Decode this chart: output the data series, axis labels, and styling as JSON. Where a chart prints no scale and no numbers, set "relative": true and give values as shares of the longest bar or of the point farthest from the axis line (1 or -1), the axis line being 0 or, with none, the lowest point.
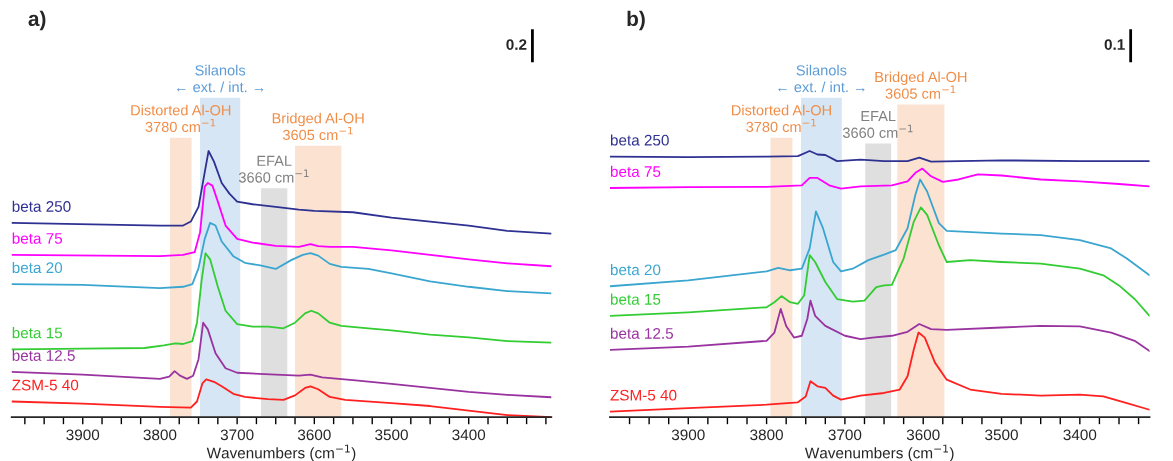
{
  "chart_data": [
    {
      "type": "line",
      "title": "a)",
      "relative": true,
      "xlabel": "Wavenumbers (cm$^{−1}$)",
      "annotations": [
        "0.2"
      ],
      "grid": false,
      "legend": false,
      "xlim": [
        3992,
        3293
      ],
      "xticks": [
        {
          "value": 3975,
          "label": null
        },
        {
          "value": 3950,
          "label": null
        },
        {
          "value": 3925,
          "label": null
        },
        3900,
        {
          "value": 3875,
          "label": null
        },
        {
          "value": 3850,
          "label": null
        },
        {
          "value": 3825,
          "label": null
        },
        3800,
        {
          "value": 3775,
          "label": null
        },
        {
          "value": 3750,
          "label": null
        },
        {
          "value": 3725,
          "label": null
        },
        3700,
        {
          "value": 3675,
          "label": null
        },
        {
          "value": 3650,
          "label": null
        },
        {
          "value": 3625,
          "label": null
        },
        3600,
        {
          "value": 3575,
          "label": null
        },
        {
          "value": 3550,
          "label": null
        },
        {
          "value": 3525,
          "label": null
        },
        3500,
        {
          "value": 3475,
          "label": null
        },
        {
          "value": 3450,
          "label": null
        },
        {
          "value": 3425,
          "label": null
        },
        3400,
        {
          "value": 3375,
          "label": null
        },
        {
          "value": 3350,
          "label": null
        },
        {
          "value": 3325,
          "label": null
        },
        {
          "value": 3300,
          "label": null
        }
      ],
      "bands": [
        {
          "axis": "x",
          "from": 3787,
          "to": 3759,
          "label": "Distorted Al-OH\n3780 cm$^{−1}$",
          "color": "#f08c46"
        },
        {
          "axis": "x",
          "from": 3748,
          "to": 3696,
          "label": "Silanols\n← ext. / int. →",
          "color": "#5b9bd5"
        },
        {
          "axis": "x",
          "from": 3669,
          "to": 3635,
          "label": "EFAL\n3660 cm$^{−1}$",
          "color": "#808080"
        },
        {
          "axis": "x",
          "from": 3625,
          "to": 3565,
          "label": "Bridged Al-OH\n3605 cm$^{−1}$",
          "color": "#f08c46"
        }
      ],
      "series": [
        {
          "name": "beta 250",
          "color": "#2e3192",
          "x": [
            3992,
            3800,
            3770,
            3760,
            3750,
            3742,
            3737,
            3730,
            3720,
            3710,
            3700,
            3680,
            3650,
            3620,
            3600,
            3550,
            3500,
            3450,
            3400,
            3350,
            3293
          ],
          "values": [
            0.73,
            0.72,
            0.72,
            0.735,
            0.79,
            0.92,
            1.0,
            0.96,
            0.88,
            0.84,
            0.81,
            0.8,
            0.79,
            0.78,
            0.775,
            0.77,
            0.75,
            0.735,
            0.72,
            0.7,
            0.69
          ]
        },
        {
          "name": "beta 75",
          "color": "#ff00ff",
          "x": [
            3992,
            3800,
            3770,
            3755,
            3748,
            3742,
            3738,
            3732,
            3725,
            3715,
            3700,
            3680,
            3650,
            3620,
            3605,
            3595,
            3580,
            3550,
            3500,
            3450,
            3400,
            3350,
            3293
          ],
          "values": [
            0.61,
            0.605,
            0.61,
            0.62,
            0.695,
            0.866,
            0.88,
            0.87,
            0.81,
            0.72,
            0.67,
            0.656,
            0.644,
            0.64,
            0.65,
            0.643,
            0.64,
            0.64,
            0.627,
            0.61,
            0.593,
            0.578,
            0.567
          ]
        },
        {
          "name": "beta 20",
          "color": "#3aa6d0",
          "x": [
            3992,
            3900,
            3800,
            3770,
            3758,
            3750,
            3742,
            3735,
            3728,
            3720,
            3705,
            3690,
            3670,
            3650,
            3630,
            3615,
            3605,
            3595,
            3580,
            3565,
            3530,
            3500,
            3450,
            3400,
            3350,
            3293
          ],
          "values": [
            0.5,
            0.497,
            0.485,
            0.49,
            0.5,
            0.56,
            0.67,
            0.73,
            0.72,
            0.66,
            0.605,
            0.58,
            0.57,
            0.557,
            0.59,
            0.61,
            0.616,
            0.607,
            0.576,
            0.565,
            0.557,
            0.54,
            0.51,
            0.49,
            0.474,
            0.465
          ]
        },
        {
          "name": "beta 15",
          "color": "#33cc33",
          "x": [
            3992,
            3900,
            3820,
            3795,
            3780,
            3770,
            3758,
            3752,
            3746,
            3741,
            3735,
            3725,
            3715,
            3700,
            3680,
            3660,
            3640,
            3625,
            3612,
            3604,
            3595,
            3580,
            3565,
            3530,
            3500,
            3450,
            3400,
            3350,
            3293
          ],
          "values": [
            0.255,
            0.258,
            0.26,
            0.27,
            0.277,
            0.275,
            0.286,
            0.355,
            0.514,
            0.616,
            0.593,
            0.49,
            0.4,
            0.35,
            0.34,
            0.34,
            0.334,
            0.355,
            0.39,
            0.4,
            0.39,
            0.355,
            0.343,
            0.334,
            0.326,
            0.31,
            0.3,
            0.286,
            0.28
          ]
        },
        {
          "name": "beta 12.5",
          "color": "#9933a0",
          "x": [
            3992,
            3900,
            3800,
            3788,
            3781,
            3774,
            3765,
            3757,
            3750,
            3744,
            3738,
            3728,
            3715,
            3700,
            3650,
            3620,
            3605,
            3590,
            3550,
            3500,
            3450,
            3400,
            3350,
            3293
          ],
          "values": [
            0.17,
            0.16,
            0.144,
            0.152,
            0.173,
            0.156,
            0.144,
            0.156,
            0.218,
            0.355,
            0.33,
            0.24,
            0.184,
            0.167,
            0.16,
            0.156,
            0.16,
            0.15,
            0.139,
            0.125,
            0.11,
            0.095,
            0.084,
            0.075
          ]
        },
        {
          "name": "ZSM-5 40",
          "color": "#ff2020",
          "x": [
            3992,
            3900,
            3800,
            3760,
            3752,
            3745,
            3740,
            3730,
            3720,
            3705,
            3690,
            3660,
            3640,
            3625,
            3612,
            3605,
            3595,
            3580,
            3560,
            3500,
            3450,
            3400,
            3350,
            3293
          ],
          "values": [
            0.059,
            0.051,
            0.039,
            0.036,
            0.059,
            0.127,
            0.142,
            0.133,
            0.116,
            0.088,
            0.076,
            0.068,
            0.065,
            0.082,
            0.11,
            0.116,
            0.105,
            0.076,
            0.065,
            0.053,
            0.042,
            0.025,
            0.008,
            0.0
          ]
        }
      ]
    },
    {
      "type": "line",
      "title": "b)",
      "relative": true,
      "xlabel": "Wavenumbers (cm$^{−1}$)",
      "annotations": [
        "0.1"
      ],
      "grid": false,
      "legend": false,
      "xlim": [
        4000,
        3311
      ],
      "xticks": [
        {
          "value": 3975,
          "label": null
        },
        {
          "value": 3950,
          "label": null
        },
        {
          "value": 3925,
          "label": null
        },
        3900,
        {
          "value": 3875,
          "label": null
        },
        {
          "value": 3850,
          "label": null
        },
        {
          "value": 3825,
          "label": null
        },
        3800,
        {
          "value": 3775,
          "label": null
        },
        {
          "value": 3750,
          "label": null
        },
        {
          "value": 3725,
          "label": null
        },
        3700,
        {
          "value": 3675,
          "label": null
        },
        {
          "value": 3650,
          "label": null
        },
        {
          "value": 3625,
          "label": null
        },
        3600,
        {
          "value": 3575,
          "label": null
        },
        {
          "value": 3550,
          "label": null
        },
        {
          "value": 3525,
          "label": null
        },
        3500,
        {
          "value": 3475,
          "label": null
        },
        {
          "value": 3450,
          "label": null
        },
        {
          "value": 3425,
          "label": null
        },
        3400,
        {
          "value": 3375,
          "label": null
        },
        {
          "value": 3350,
          "label": null
        },
        {
          "value": 3325,
          "label": null
        }
      ],
      "bands": [
        {
          "axis": "x",
          "from": 3795,
          "to": 3767,
          "label": "Distorted Al-OH\n3780 cm$^{−1}$",
          "color": "#f08c46"
        },
        {
          "axis": "x",
          "from": 3756,
          "to": 3704,
          "label": "Silanols\n← ext. / int. →",
          "color": "#5b9bd5"
        },
        {
          "axis": "x",
          "from": 3674,
          "to": 3641,
          "label": "EFAL\n3660 cm$^{−1}$",
          "color": "#808080"
        },
        {
          "axis": "x",
          "from": 3633,
          "to": 3573,
          "label": "Bridged Al-OH\n3605 cm$^{−1}$",
          "color": "#f08c46"
        }
      ],
      "series": [
        {
          "name": "beta 250",
          "color": "#2e3192",
          "x": [
            4000,
            3900,
            3800,
            3760,
            3745,
            3735,
            3725,
            3710,
            3680,
            3650,
            3620,
            3605,
            3590,
            3500,
            3400,
            3311
          ],
          "values": [
            0.979,
            0.977,
            0.979,
            0.981,
            1.0,
            0.987,
            0.985,
            0.962,
            0.968,
            0.962,
            0.962,
            0.975,
            0.96,
            0.965,
            0.962,
            0.962
          ]
        },
        {
          "name": "beta 75",
          "color": "#ff00ff",
          "x": [
            4000,
            3900,
            3800,
            3755,
            3745,
            3735,
            3720,
            3705,
            3680,
            3640,
            3620,
            3610,
            3601,
            3590,
            3575,
            3555,
            3530,
            3500,
            3450,
            3400,
            3350,
            3311
          ],
          "values": [
            0.861,
            0.864,
            0.865,
            0.871,
            0.899,
            0.899,
            0.871,
            0.859,
            0.867,
            0.871,
            0.886,
            0.918,
            0.934,
            0.905,
            0.884,
            0.893,
            0.912,
            0.908,
            0.893,
            0.886,
            0.876,
            0.867
          ]
        },
        {
          "name": "beta 20",
          "color": "#3aa6d0",
          "x": [
            4000,
            3900,
            3800,
            3785,
            3770,
            3755,
            3745,
            3737,
            3728,
            3715,
            3705,
            3690,
            3670,
            3650,
            3635,
            3620,
            3610,
            3604,
            3595,
            3580,
            3570,
            3500,
            3450,
            3400,
            3360,
            3340,
            3311
          ],
          "values": [
            0.492,
            0.514,
            0.548,
            0.561,
            0.552,
            0.558,
            0.634,
            0.773,
            0.71,
            0.583,
            0.548,
            0.558,
            0.59,
            0.611,
            0.628,
            0.71,
            0.836,
            0.893,
            0.848,
            0.729,
            0.7,
            0.69,
            0.684,
            0.665,
            0.634,
            0.596,
            0.533
          ]
        },
        {
          "name": "beta 15",
          "color": "#33cc33",
          "x": [
            4000,
            3900,
            3800,
            3790,
            3781,
            3770,
            3760,
            3752,
            3745,
            3738,
            3725,
            3710,
            3690,
            3675,
            3660,
            3650,
            3640,
            3625,
            3612,
            3603,
            3595,
            3580,
            3570,
            3540,
            3500,
            3450,
            3400,
            3370,
            3350,
            3330,
            3311
          ],
          "values": [
            0.381,
            0.394,
            0.413,
            0.432,
            0.455,
            0.432,
            0.426,
            0.457,
            0.609,
            0.583,
            0.508,
            0.444,
            0.434,
            0.438,
            0.489,
            0.495,
            0.497,
            0.596,
            0.735,
            0.788,
            0.76,
            0.646,
            0.583,
            0.59,
            0.583,
            0.577,
            0.558,
            0.533,
            0.495,
            0.444,
            0.381
          ]
        },
        {
          "name": "beta 12.5",
          "color": "#9933a0",
          "x": [
            4000,
            3900,
            3800,
            3790,
            3782,
            3775,
            3765,
            3755,
            3748,
            3744,
            3738,
            3725,
            3700,
            3680,
            3665,
            3640,
            3620,
            3605,
            3590,
            3570,
            3500,
            3450,
            3400,
            3360,
            3330,
            3311
          ],
          "values": [
            0.253,
            0.265,
            0.287,
            0.318,
            0.407,
            0.343,
            0.299,
            0.306,
            0.369,
            0.438,
            0.381,
            0.343,
            0.306,
            0.293,
            0.299,
            0.306,
            0.321,
            0.35,
            0.331,
            0.328,
            0.337,
            0.343,
            0.341,
            0.318,
            0.287,
            0.249
          ]
        },
        {
          "name": "ZSM-5 40",
          "color": "#ff2020",
          "x": [
            4000,
            3900,
            3800,
            3760,
            3750,
            3744,
            3735,
            3725,
            3715,
            3705,
            3680,
            3650,
            3630,
            3620,
            3612,
            3606,
            3598,
            3585,
            3570,
            3540,
            3500,
            3450,
            3400,
            3370,
            3340,
            3311
          ],
          "values": [
            0.021,
            0.034,
            0.047,
            0.056,
            0.078,
            0.135,
            0.116,
            0.11,
            0.081,
            0.066,
            0.081,
            0.091,
            0.104,
            0.154,
            0.255,
            0.318,
            0.299,
            0.205,
            0.141,
            0.104,
            0.088,
            0.081,
            0.085,
            0.078,
            0.053,
            0.028
          ]
        }
      ]
    }
  ]
}
